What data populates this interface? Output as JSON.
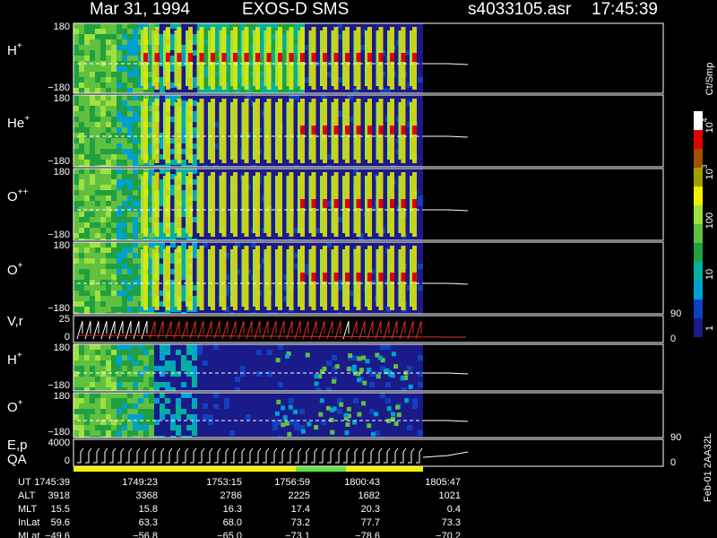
{
  "header": {
    "date": "Mar 31, 1994",
    "instrument": "EXOS-D SMS",
    "file": "s4033105.asr",
    "time": "17:45:39"
  },
  "panels": [
    {
      "label": "H",
      "sup": "+",
      "top": "180",
      "bottom": "−180"
    },
    {
      "label": "He",
      "sup": "+",
      "top": "180",
      "bottom": "−180"
    },
    {
      "label": "O",
      "sup": "++",
      "top": "180",
      "bottom": "−180"
    },
    {
      "label": "O",
      "sup": "+",
      "top": "180",
      "bottom": "−180"
    },
    {
      "label": "V,r",
      "top": "25",
      "bottom": "0",
      "right_top": "90",
      "right_bottom": "0"
    },
    {
      "label": "H",
      "sup": "+",
      "top": "180",
      "bottom": "−180"
    },
    {
      "label": "O",
      "sup": "+",
      "top": "180",
      "bottom": "−180"
    },
    {
      "label": "E,p",
      "label2": "QA",
      "top": "4000",
      "bottom": "0",
      "right_top": "90",
      "right_bottom": "0"
    }
  ],
  "colorbar": {
    "unit": "Ct/Smp",
    "ticks": [
      {
        "base": "10",
        "exp": "4"
      },
      {
        "base": "10",
        "exp": "3"
      },
      {
        "base": "100"
      },
      {
        "base": "10"
      },
      {
        "base": "1"
      }
    ]
  },
  "footer": {
    "rows": [
      [
        "UT",
        "1745:39",
        "1749:23",
        "1753:15",
        "1756:59",
        "1800:43",
        "1805:47"
      ],
      [
        "ALT",
        "3918",
        "3368",
        "2786",
        "2225",
        "1682",
        "1021"
      ],
      [
        "MLT",
        "15.5",
        "15.8",
        "16.3",
        "17.4",
        "20.3",
        "0.4"
      ],
      [
        "InLat",
        "59.6",
        "63.3",
        "68.0",
        "73.2",
        "77.7",
        "73.3"
      ],
      [
        "MLat",
        "−49.6",
        "−56.8",
        "−65.0",
        "−73.1",
        "−78.6",
        "−70.2"
      ]
    ],
    "note": "Feb-01 2AA32L"
  }
}
